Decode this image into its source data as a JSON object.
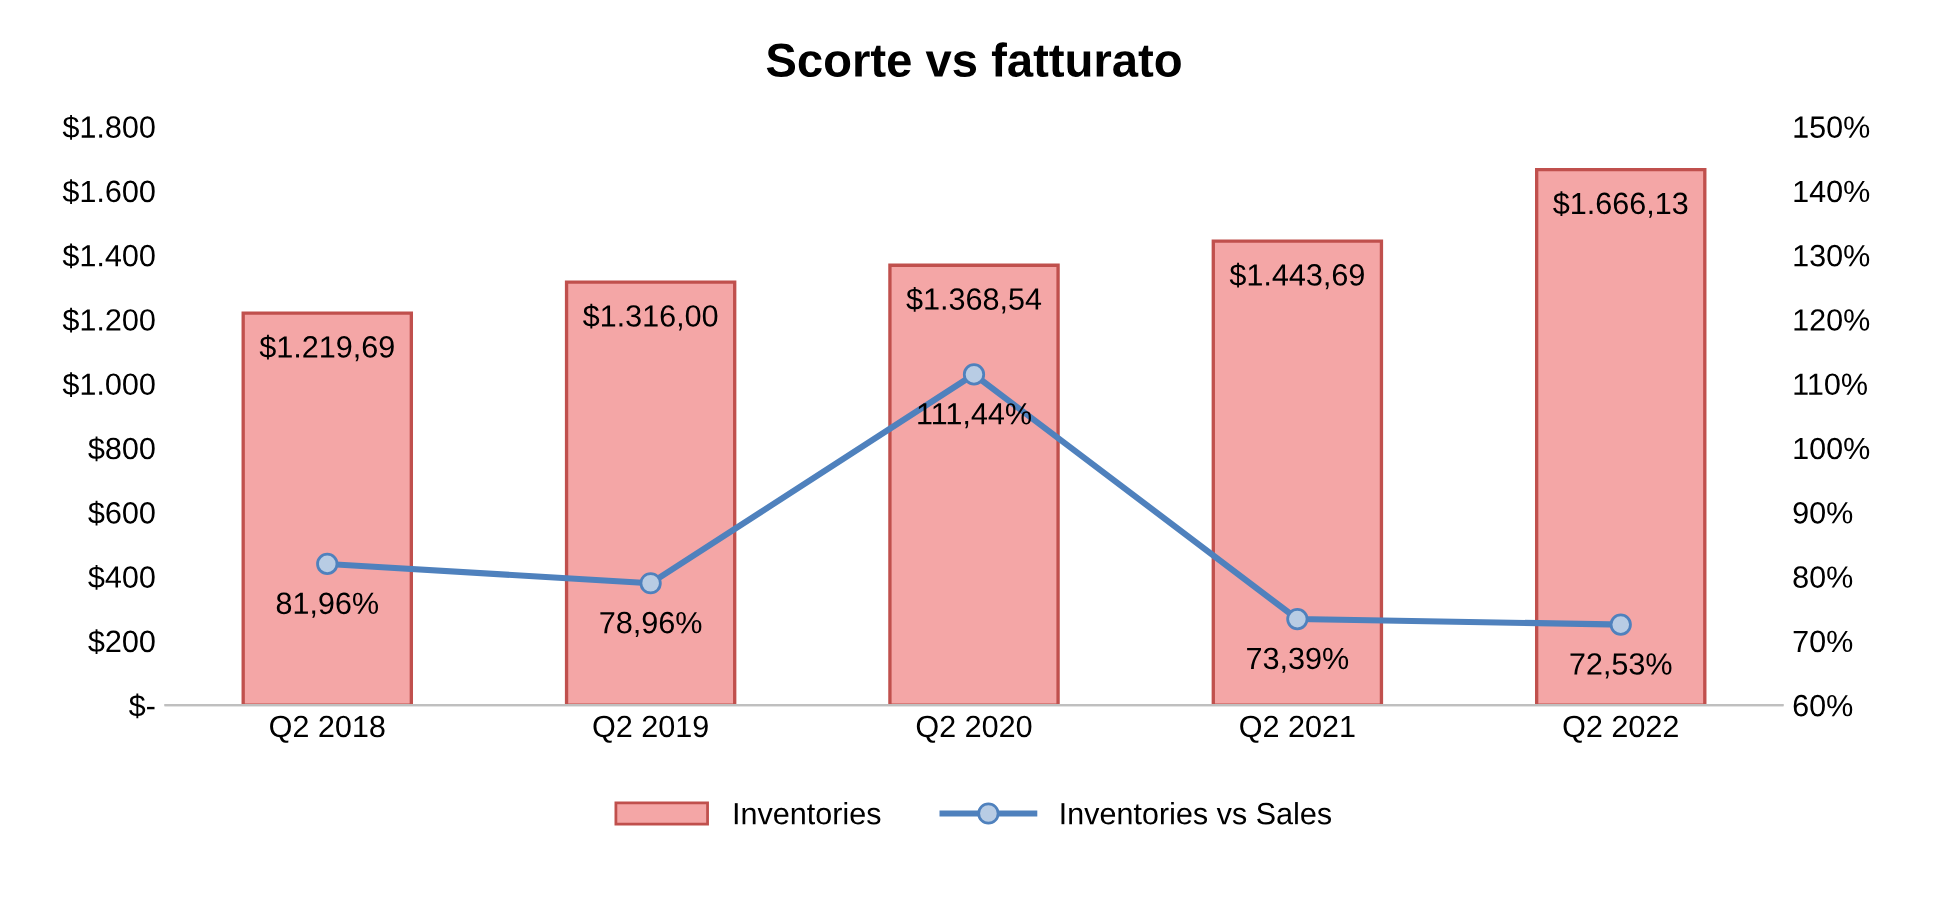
{
  "chart_data": {
    "type": "bar",
    "title": "Scorte vs fatturato",
    "categories": [
      "Q2 2018",
      "Q2 2019",
      "Q2 2020",
      "Q2 2021",
      "Q2 2022"
    ],
    "series": [
      {
        "name": "Inventories",
        "color": "#f4a6a6",
        "values": [
          1219.69,
          1316.0,
          1368.54,
          1443.69,
          1666.13
        ],
        "value_labels": [
          "$1.219,69",
          "$1.316,00",
          "$1.368,54",
          "$1.443,69",
          "$1.666,13"
        ]
      },
      {
        "name": "Inventories vs Sales",
        "type": "line",
        "axis": "y2",
        "color": "#4f81bd",
        "values": [
          81.96,
          78.96,
          111.44,
          73.39,
          72.53
        ],
        "value_labels": [
          "81,96%",
          "78,96%",
          "111,44%",
          "73,39%",
          "72,53%"
        ]
      }
    ],
    "ylim": [
      0,
      1800
    ],
    "yticks": [
      {
        "value": 0,
        "label": "$-"
      },
      {
        "value": 200,
        "label": "$200"
      },
      {
        "value": 400,
        "label": "$400"
      },
      {
        "value": 600,
        "label": "$600"
      },
      {
        "value": 800,
        "label": "$800"
      },
      {
        "value": 1000,
        "label": "$1.000"
      },
      {
        "value": 1200,
        "label": "$1.200"
      },
      {
        "value": 1400,
        "label": "$1.400"
      },
      {
        "value": 1600,
        "label": "$1.600"
      },
      {
        "value": 1800,
        "label": "$1.800"
      }
    ],
    "y2lim": [
      60,
      150
    ],
    "y2ticks": [
      {
        "value": 60,
        "label": "60%"
      },
      {
        "value": 70,
        "label": "70%"
      },
      {
        "value": 80,
        "label": "80%"
      },
      {
        "value": 90,
        "label": "90%"
      },
      {
        "value": 100,
        "label": "100%"
      },
      {
        "value": 110,
        "label": "110%"
      },
      {
        "value": 120,
        "label": "120%"
      },
      {
        "value": 130,
        "label": "130%"
      },
      {
        "value": 140,
        "label": "140%"
      },
      {
        "value": 150,
        "label": "150%"
      }
    ],
    "marker": "circle",
    "legend": "bottom",
    "grid": false
  }
}
